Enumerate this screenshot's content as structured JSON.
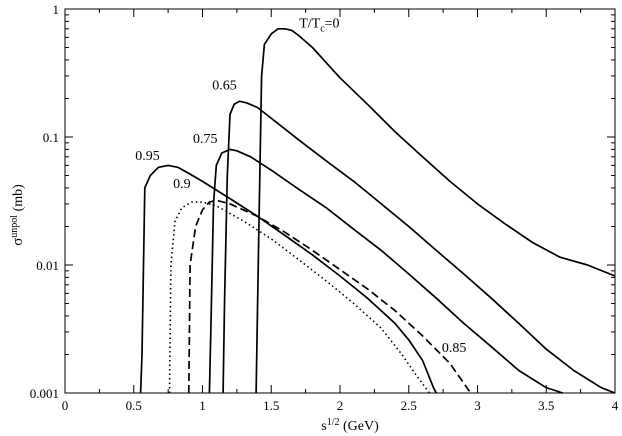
{
  "chart_data": {
    "type": "line",
    "title": "",
    "xlabel": {
      "base": "s",
      "sup": "1/2",
      "rest": " (GeV)"
    },
    "ylabel": {
      "base": "σ",
      "sup": "unpol",
      "rest": " (mb)"
    },
    "xlim": [
      0,
      4
    ],
    "ylim": [
      0.001,
      1
    ],
    "yscale": "log",
    "grid": false,
    "legend": "none",
    "xticks": [
      0,
      0.5,
      1,
      1.5,
      2,
      2.5,
      3,
      3.5,
      4
    ],
    "xtick_labels": [
      "0",
      "0.5",
      "1",
      "1.5",
      "2",
      "2.5",
      "3",
      "3.5",
      "4"
    ],
    "yticks": [
      0.001,
      0.01,
      0.1,
      1
    ],
    "ytick_labels": [
      "0.001",
      "0.01",
      "0.1",
      "1"
    ],
    "series": [
      {
        "name": "T/T",
        "label": {
          "text": "T/T",
          "sub": "c",
          "rest": "=0",
          "x": 1.85,
          "y": 0.72
        },
        "style": "solid",
        "points": [
          [
            1.39,
            0.001
          ],
          [
            1.41,
            0.02
          ],
          [
            1.43,
            0.3
          ],
          [
            1.45,
            0.53
          ],
          [
            1.5,
            0.64
          ],
          [
            1.55,
            0.7
          ],
          [
            1.6,
            0.7
          ],
          [
            1.65,
            0.68
          ],
          [
            1.7,
            0.62
          ],
          [
            1.8,
            0.5
          ],
          [
            1.9,
            0.38
          ],
          [
            2.0,
            0.29
          ],
          [
            2.2,
            0.18
          ],
          [
            2.4,
            0.11
          ],
          [
            2.6,
            0.07
          ],
          [
            2.8,
            0.045
          ],
          [
            3.0,
            0.03
          ],
          [
            3.2,
            0.021
          ],
          [
            3.4,
            0.015
          ],
          [
            3.6,
            0.0115
          ],
          [
            3.8,
            0.01
          ],
          [
            4.0,
            0.0082
          ]
        ]
      },
      {
        "name": "0.65",
        "label": {
          "text": "0.65",
          "x": 1.16,
          "y": 0.235
        },
        "style": "solid",
        "points": [
          [
            1.15,
            0.001
          ],
          [
            1.16,
            0.005
          ],
          [
            1.18,
            0.05
          ],
          [
            1.2,
            0.15
          ],
          [
            1.23,
            0.18
          ],
          [
            1.27,
            0.19
          ],
          [
            1.32,
            0.185
          ],
          [
            1.4,
            0.17
          ],
          [
            1.5,
            0.14
          ],
          [
            1.7,
            0.095
          ],
          [
            1.9,
            0.065
          ],
          [
            2.1,
            0.045
          ],
          [
            2.3,
            0.03
          ],
          [
            2.5,
            0.02
          ],
          [
            2.7,
            0.013
          ],
          [
            2.9,
            0.0085
          ],
          [
            3.1,
            0.0055
          ],
          [
            3.3,
            0.0035
          ],
          [
            3.5,
            0.0022
          ],
          [
            3.7,
            0.0015
          ],
          [
            3.9,
            0.0011
          ],
          [
            4.0,
            0.001
          ]
        ]
      },
      {
        "name": "0.75",
        "label": {
          "text": "0.75",
          "x": 1.02,
          "y": 0.09
        },
        "style": "solid",
        "points": [
          [
            1.05,
            0.001
          ],
          [
            1.06,
            0.003
          ],
          [
            1.08,
            0.03
          ],
          [
            1.1,
            0.06
          ],
          [
            1.14,
            0.075
          ],
          [
            1.2,
            0.08
          ],
          [
            1.25,
            0.078
          ],
          [
            1.35,
            0.07
          ],
          [
            1.5,
            0.055
          ],
          [
            1.7,
            0.039
          ],
          [
            1.9,
            0.028
          ],
          [
            2.1,
            0.019
          ],
          [
            2.3,
            0.013
          ],
          [
            2.5,
            0.0085
          ],
          [
            2.7,
            0.0055
          ],
          [
            2.9,
            0.0035
          ],
          [
            3.1,
            0.0023
          ],
          [
            3.3,
            0.0015
          ],
          [
            3.5,
            0.0011
          ],
          [
            3.62,
            0.001
          ]
        ]
      },
      {
        "name": "0.95",
        "label": {
          "text": "0.95",
          "x": 0.6,
          "y": 0.066
        },
        "style": "solid",
        "points": [
          [
            0.55,
            0.001
          ],
          [
            0.56,
            0.002
          ],
          [
            0.58,
            0.04
          ],
          [
            0.62,
            0.05
          ],
          [
            0.68,
            0.058
          ],
          [
            0.75,
            0.06
          ],
          [
            0.82,
            0.058
          ],
          [
            0.9,
            0.052
          ],
          [
            1.0,
            0.045
          ],
          [
            1.2,
            0.033
          ],
          [
            1.4,
            0.024
          ],
          [
            1.6,
            0.017
          ],
          [
            1.8,
            0.012
          ],
          [
            2.0,
            0.0082
          ],
          [
            2.2,
            0.0055
          ],
          [
            2.4,
            0.0035
          ],
          [
            2.5,
            0.0026
          ],
          [
            2.6,
            0.0018
          ],
          [
            2.68,
            0.0011
          ],
          [
            2.7,
            0.001
          ]
        ]
      },
      {
        "name": "0.9",
        "label": {
          "text": "0.9",
          "x": 0.85,
          "y": 0.04
        },
        "style": "dotted",
        "points": [
          [
            0.76,
            0.001
          ],
          [
            0.77,
            0.01
          ],
          [
            0.8,
            0.022
          ],
          [
            0.85,
            0.028
          ],
          [
            0.92,
            0.031
          ],
          [
            1.0,
            0.031
          ],
          [
            1.1,
            0.029
          ],
          [
            1.3,
            0.022
          ],
          [
            1.5,
            0.016
          ],
          [
            1.7,
            0.011
          ],
          [
            1.9,
            0.0075
          ],
          [
            2.1,
            0.005
          ],
          [
            2.3,
            0.0032
          ],
          [
            2.45,
            0.002
          ],
          [
            2.55,
            0.0014
          ],
          [
            2.65,
            0.001
          ]
        ]
      },
      {
        "name": "0.85",
        "label": {
          "text": "0.85",
          "x": 2.83,
          "y": 0.0021
        },
        "style": "dashed",
        "points": [
          [
            0.9,
            0.001
          ],
          [
            0.91,
            0.01
          ],
          [
            0.95,
            0.02
          ],
          [
            1.0,
            0.027
          ],
          [
            1.05,
            0.031
          ],
          [
            1.1,
            0.032
          ],
          [
            1.2,
            0.03
          ],
          [
            1.4,
            0.024
          ],
          [
            1.6,
            0.018
          ],
          [
            1.8,
            0.013
          ],
          [
            2.0,
            0.0092
          ],
          [
            2.2,
            0.0065
          ],
          [
            2.4,
            0.0044
          ],
          [
            2.6,
            0.0028
          ],
          [
            2.8,
            0.0017
          ],
          [
            2.95,
            0.001
          ]
        ]
      }
    ]
  }
}
